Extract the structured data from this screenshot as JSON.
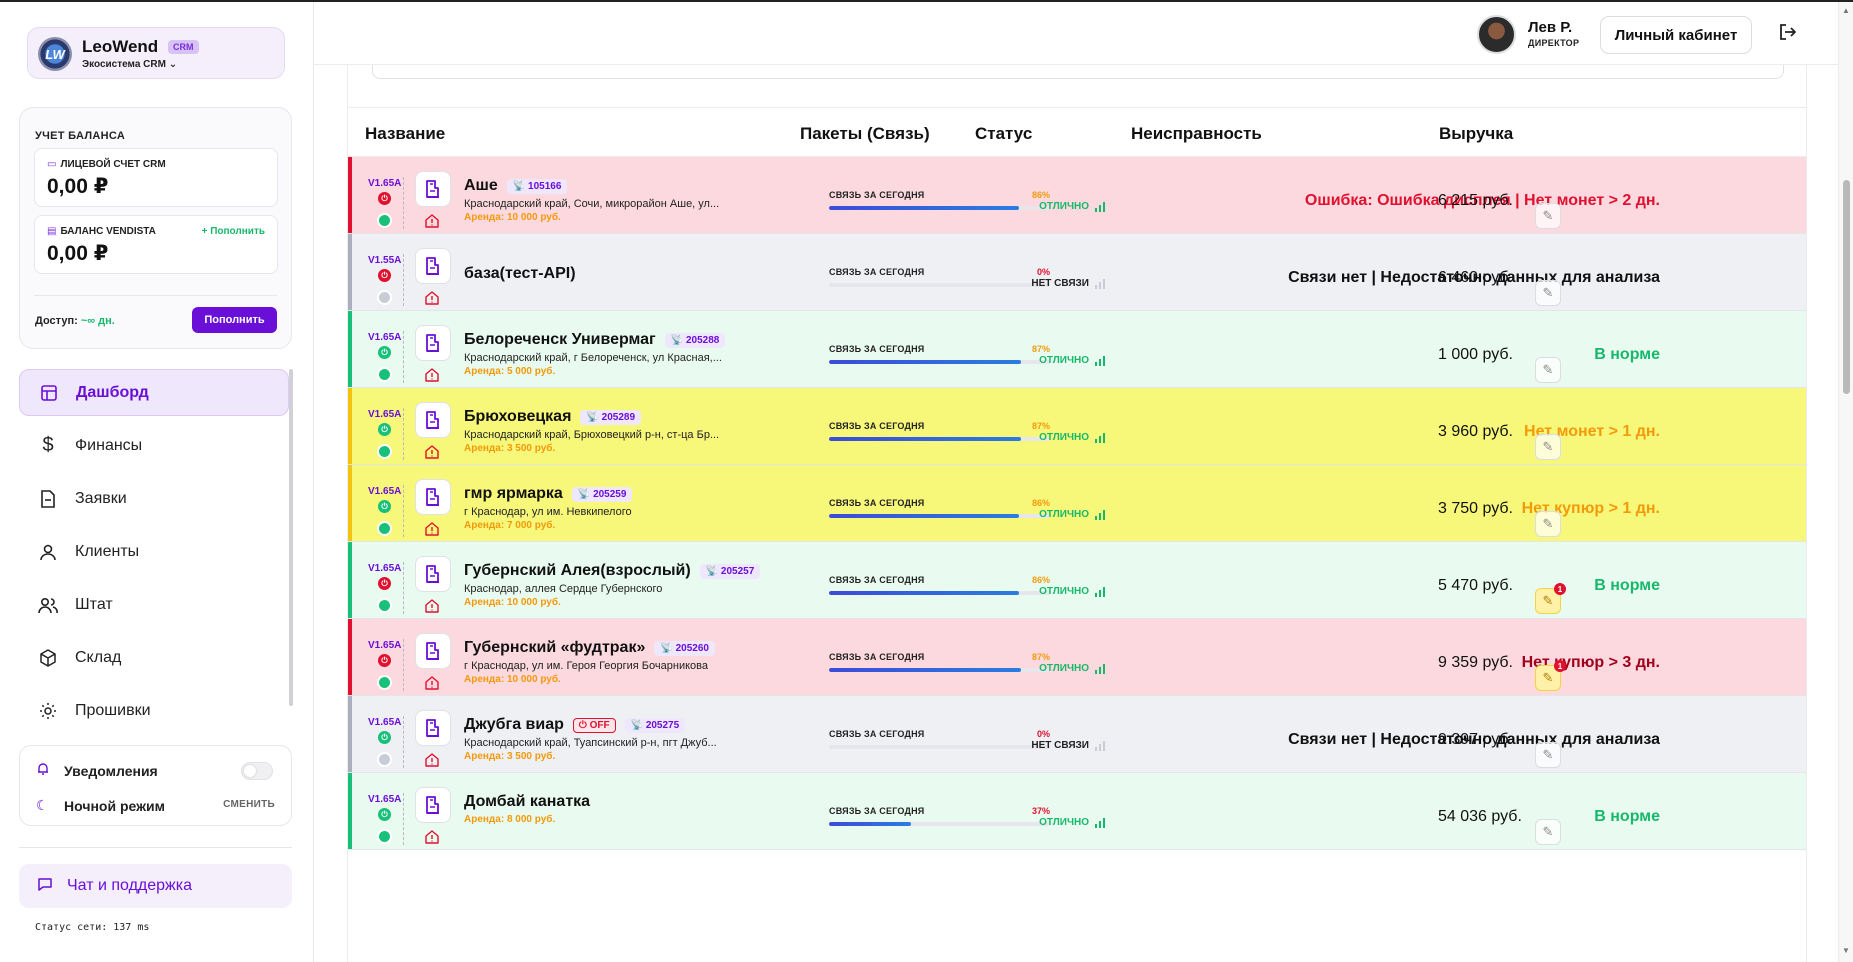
{
  "brand": {
    "name": "LeoWend",
    "badge": "CRM",
    "subtitle": "Экосистема CRM ⌄",
    "logo_text": "LW"
  },
  "balance": {
    "title": "УЧЕТ БАЛАНСА",
    "account": {
      "label": "ЛИЦЕВОЙ СЧЕТ CRM",
      "value": "0,00 ₽"
    },
    "vendista": {
      "label": "БАЛАНС VENDISTA",
      "value": "0,00 ₽",
      "topup_link": "+ Пополнить"
    },
    "access_label": "Доступ:",
    "access_value": "~∞ дн.",
    "topup_button": "Пополнить"
  },
  "nav": {
    "items": [
      {
        "label": "Дашборд",
        "icon": "dashboard-icon",
        "active": true
      },
      {
        "label": "Финансы",
        "icon": "dollar-icon",
        "active": false
      },
      {
        "label": "Заявки",
        "icon": "file-icon",
        "active": false
      },
      {
        "label": "Клиенты",
        "icon": "user-icon",
        "active": false
      },
      {
        "label": "Штат",
        "icon": "users-icon",
        "active": false
      },
      {
        "label": "Склад",
        "icon": "box-icon",
        "active": false
      },
      {
        "label": "Прошивки",
        "icon": "sun-icon",
        "active": false
      }
    ]
  },
  "prefs": {
    "notifications": "Уведомления",
    "night_mode": "Ночной режим",
    "change": "СМЕНИТЬ"
  },
  "chat": {
    "label": "Чат и поддержка"
  },
  "network_status": "Статус сети: 137 ms",
  "header": {
    "user_name": "Лев Р.",
    "user_role": "ДИРЕКТОР",
    "cabinet_button": "Личный кабинет"
  },
  "table": {
    "columns": {
      "name": "Название",
      "packets": "Пакеты (Связь)",
      "status": "Статус",
      "fault": "Неисправность",
      "revenue": "Выручка"
    },
    "rows": [
      {
        "version": "V1.65A",
        "name": "Аше",
        "id": "105166",
        "address": "Краснодарский край, Сочи, микрорайон Аше, ул...",
        "rent": "Аренда: 10 000 руб.",
        "conn_label": "СВЯЗЬ ЗА СЕГОДНЯ",
        "conn_pct": "86%",
        "conn": 0.86,
        "status": "ОТЛИЧНО",
        "fault": "Ошибка: Ошибка дисплея | Нет монет > 2 дн.",
        "revenue": "6 215 руб.",
        "theme": "red",
        "power": "red",
        "dot": "green",
        "off": "",
        "notify": ""
      },
      {
        "version": "V1.55A",
        "name": "база(тест-API)",
        "id": "",
        "address": "",
        "rent": "",
        "conn_label": "СВЯЗЬ ЗА СЕГОДНЯ",
        "conn_pct": "0%",
        "conn": 0,
        "status": "НЕТ СВЯЗИ",
        "fault": "Связи нет | Недостаточно данных для анализа",
        "revenue": "6 460 руб.",
        "theme": "gray",
        "power": "red",
        "dot": "gray",
        "off": "",
        "notify": ""
      },
      {
        "version": "V1.65A",
        "name": "Белореченск Универмаг",
        "id": "205288",
        "address": "Краснодарский край, г Белореченск, ул Красная,...",
        "rent": "Аренда: 5 000 руб.",
        "conn_label": "СВЯЗЬ ЗА СЕГОДНЯ",
        "conn_pct": "87%",
        "conn": 0.87,
        "status": "ОТЛИЧНО",
        "fault": "В норме",
        "revenue": "1 000 руб.",
        "theme": "green",
        "power": "green",
        "dot": "green",
        "off": "",
        "notify": ""
      },
      {
        "version": "V1.65A",
        "name": "Брюховецкая",
        "id": "205289",
        "address": "Краснодарский край, Брюховецкий р-н, ст-ца Бр...",
        "rent": "Аренда: 3 500 руб.",
        "conn_label": "СВЯЗЬ ЗА СЕГОДНЯ",
        "conn_pct": "87%",
        "conn": 0.87,
        "status": "ОТЛИЧНО",
        "fault": "Нет монет > 1 дн.",
        "revenue": "3 960 руб.",
        "theme": "yellow",
        "power": "green",
        "dot": "green",
        "off": "",
        "notify": ""
      },
      {
        "version": "V1.65A",
        "name": "гмр ярмарка",
        "id": "205259",
        "address": "г Краснодар, ул им. Невкипелого",
        "rent": "Аренда: 7 000 руб.",
        "conn_label": "СВЯЗЬ ЗА СЕГОДНЯ",
        "conn_pct": "86%",
        "conn": 0.86,
        "status": "ОТЛИЧНО",
        "fault": "Нет купюр > 1 дн.",
        "revenue": "3 750 руб.",
        "theme": "yellow",
        "power": "green",
        "dot": "green",
        "off": "",
        "notify": ""
      },
      {
        "version": "V1.65A",
        "name": "Губернский Алея(взрослый)",
        "id": "205257",
        "address": "Краснодар, аллея Сердце Губернского",
        "rent": "Аренда: 10 000 руб.",
        "conn_label": "СВЯЗЬ ЗА СЕГОДНЯ",
        "conn_pct": "86%",
        "conn": 0.86,
        "status": "ОТЛИЧНО",
        "fault": "В норме",
        "revenue": "5 470 руб.",
        "theme": "green",
        "power": "red",
        "dot": "green",
        "off": "",
        "notify": "1"
      },
      {
        "version": "V1.65A",
        "name": "Губернский «фудтрак»",
        "id": "205260",
        "address": "г Краснодар, ул им. Героя Георгия Бочарникова",
        "rent": "Аренда: 10 000 руб.",
        "conn_label": "СВЯЗЬ ЗА СЕГОДНЯ",
        "conn_pct": "87%",
        "conn": 0.87,
        "status": "ОТЛИЧНО",
        "fault": "Нет купюр > 3 дн.",
        "revenue": "9 359 руб.",
        "theme": "red",
        "power": "red",
        "dot": "green",
        "off": "",
        "notify": "1"
      },
      {
        "version": "V1.65A",
        "name": "Джубга виар",
        "id": "205275",
        "address": "Краснодарский край, Туапсинский р-н, пгт Джуб...",
        "rent": "Аренда: 3 500 руб.",
        "conn_label": "СВЯЗЬ ЗА СЕГОДНЯ",
        "conn_pct": "0%",
        "conn": 0,
        "status": "НЕТ СВЯЗИ",
        "fault": "Связи нет | Недостаточно данных для анализа",
        "revenue": "9 397 руб.",
        "theme": "gray",
        "power": "green",
        "dot": "gray",
        "off": "OFF",
        "notify": ""
      },
      {
        "version": "V1.65A",
        "name": "Домбай канатка",
        "id": "",
        "address": "",
        "rent": "Аренда: 8 000 руб.",
        "conn_label": "СВЯЗЬ ЗА СЕГОДНЯ",
        "conn_pct": "37%",
        "conn": 0.37,
        "status": "ОТЛИЧНО",
        "fault": "В норме",
        "revenue": "54 036 руб.",
        "theme": "green",
        "power": "green",
        "dot": "green",
        "off": "",
        "notify": ""
      }
    ]
  },
  "colors": {
    "accent": "#6a0fd8",
    "themes": {
      "red": {
        "bg": "#fcd9de",
        "bar": "#e0102f",
        "fault": "#e0102f"
      },
      "gray": {
        "bg": "#eef0f4",
        "bar": "#a9afbd",
        "fault": "#111111"
      },
      "green": {
        "bg": "#e9fbf1",
        "bar": "#18c07a",
        "fault": "#18b86b"
      },
      "yellow": {
        "bg": "#f7f77a",
        "bar": "#f2c40f",
        "fault": "#f39a0b"
      }
    },
    "status_ok": "#18b86b",
    "status_none": "#222222",
    "power_green": "#18c07a",
    "power_red": "#e0102f",
    "dot_green": "#18c07a",
    "dot_gray": "#c8ccd4"
  }
}
